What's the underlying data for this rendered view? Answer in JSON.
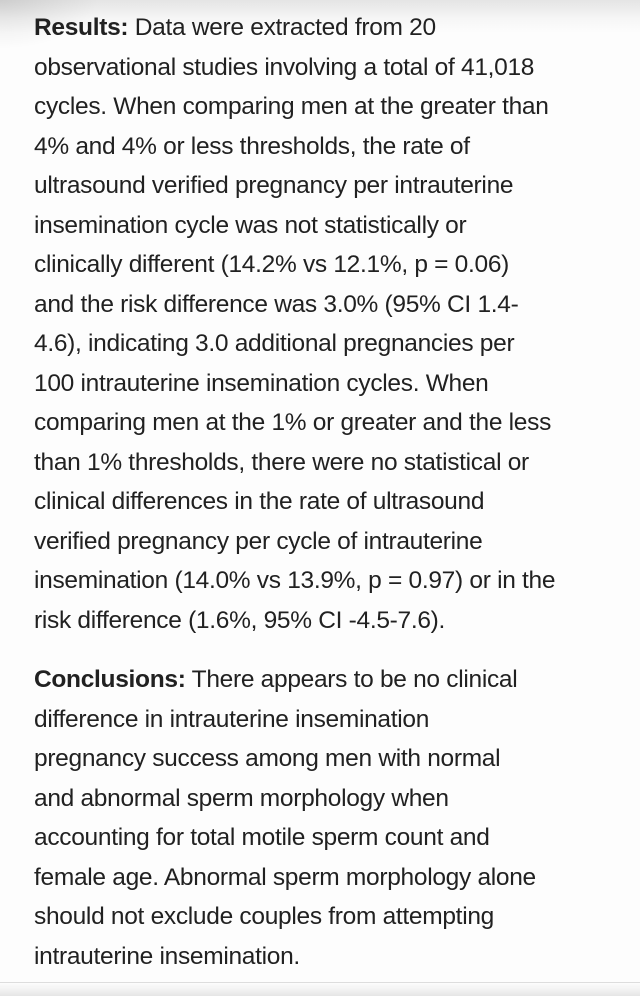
{
  "document": {
    "text_color": "#212121",
    "background_color": "#fdfdfd",
    "paragraphs": [
      {
        "label": "Results:",
        "lines": [
          "Data were extracted from 20",
          "observational studies involving a total of 41,018",
          "cycles. When comparing men at the greater than",
          "4% and 4% or less thresholds, the rate of",
          "ultrasound verified pregnancy per intrauterine",
          "insemination cycle was not statistically or",
          "clinically different (14.2% vs 12.1%, p = 0.06)",
          "and the risk difference was 3.0% (95% CI 1.4-",
          "4.6), indicating 3.0 additional pregnancies per",
          "100 intrauterine insemination cycles. When",
          "comparing men at the 1% or greater and the less",
          "than 1% thresholds, there were no statistical or",
          "clinical differences in the rate of ultrasound",
          "verified pregnancy per cycle of intrauterine",
          "insemination (14.0% vs 13.9%, p = 0.97) or in the",
          "risk difference (1.6%, 95% CI -4.5-7.6)."
        ]
      },
      {
        "label": "Conclusions:",
        "lines": [
          "There appears to be no clinical",
          "difference in intrauterine insemination",
          "pregnancy success among men with normal",
          "and abnormal sperm morphology when",
          "accounting for total motile sperm count and",
          "female age. Abnormal sperm morphology alone",
          "should not exclude couples from attempting",
          "intrauterine insemination."
        ]
      }
    ]
  }
}
